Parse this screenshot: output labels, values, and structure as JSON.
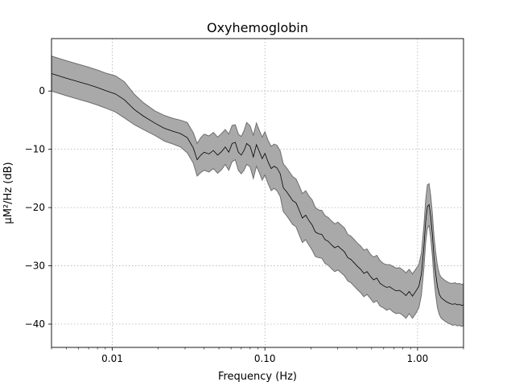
{
  "chart_data": {
    "type": "area",
    "title": "Oxyhemoglobin",
    "xlabel": "Frequency (Hz)",
    "ylabel": "µM²/Hz (dB)",
    "xscale": "log",
    "xlim": [
      0.004,
      2.0
    ],
    "ylim": [
      -44,
      9
    ],
    "grid": true,
    "x_ticks": [
      0.01,
      0.1,
      1.0
    ],
    "x_tick_labels": [
      "0.01",
      "0.10",
      "1.00"
    ],
    "y_ticks": [
      0,
      -10,
      -20,
      -30,
      -40
    ],
    "y_tick_labels": [
      "0",
      "−10",
      "−20",
      "−30",
      "−40"
    ],
    "colors": {
      "mean_line": "#000000",
      "band_fill": "#a9a9a9",
      "band_edge": "#6e6e6e"
    },
    "series": [
      {
        "x": [
          0.004,
          0.005,
          0.006,
          0.007,
          0.008,
          0.009,
          0.0105,
          0.012,
          0.014,
          0.016,
          0.019,
          0.022,
          0.025,
          0.028,
          0.031,
          0.034,
          0.036,
          0.038,
          0.04,
          0.043,
          0.046,
          0.049,
          0.052,
          0.055,
          0.058,
          0.061,
          0.064,
          0.067,
          0.07,
          0.073,
          0.076,
          0.08,
          0.084,
          0.088,
          0.092,
          0.096,
          0.1,
          0.105,
          0.11,
          0.115,
          0.12,
          0.126,
          0.132,
          0.138,
          0.145,
          0.152,
          0.16,
          0.168,
          0.176,
          0.185,
          0.194,
          0.204,
          0.214,
          0.225,
          0.236,
          0.248,
          0.26,
          0.273,
          0.287,
          0.301,
          0.316,
          0.332,
          0.349,
          0.366,
          0.385,
          0.404,
          0.424,
          0.445,
          0.467,
          0.491,
          0.515,
          0.541,
          0.568,
          0.597,
          0.627,
          0.658,
          0.691,
          0.725,
          0.762,
          0.8,
          0.84,
          0.882,
          0.926,
          0.972,
          1.02,
          1.06,
          1.1,
          1.13,
          1.16,
          1.19,
          1.22,
          1.25,
          1.28,
          1.31,
          1.35,
          1.39,
          1.43,
          1.48,
          1.53,
          1.58,
          1.64,
          1.7,
          1.76,
          1.82,
          1.88,
          1.94,
          2.0
        ],
        "mean": [
          3.0,
          2.2,
          1.6,
          1.1,
          0.6,
          0.1,
          -0.5,
          -1.5,
          -3.2,
          -4.3,
          -5.5,
          -6.4,
          -6.9,
          -7.3,
          -8.0,
          -9.8,
          -11.8,
          -11.0,
          -10.5,
          -10.8,
          -10.2,
          -11.0,
          -10.4,
          -9.6,
          -10.5,
          -9.0,
          -8.8,
          -10.5,
          -11.0,
          -10.2,
          -9.0,
          -9.5,
          -11.3,
          -9.2,
          -10.4,
          -11.6,
          -10.7,
          -12.2,
          -13.3,
          -12.9,
          -13.2,
          -14.2,
          -16.6,
          -17.2,
          -18.0,
          -18.8,
          -19.2,
          -20.5,
          -21.8,
          -21.3,
          -22.2,
          -23.0,
          -24.2,
          -24.5,
          -24.6,
          -25.5,
          -25.8,
          -26.4,
          -26.9,
          -26.6,
          -27.1,
          -27.6,
          -28.6,
          -28.9,
          -29.5,
          -30.1,
          -30.6,
          -31.3,
          -31.0,
          -31.8,
          -32.4,
          -32.1,
          -33.0,
          -33.4,
          -33.7,
          -33.6,
          -34.0,
          -34.3,
          -34.2,
          -34.6,
          -35.1,
          -34.4,
          -35.2,
          -34.4,
          -33.5,
          -31.4,
          -26.8,
          -22.4,
          -19.8,
          -19.5,
          -21.6,
          -24.6,
          -28.4,
          -31.0,
          -33.6,
          -34.9,
          -35.5,
          -35.8,
          -36.1,
          -36.3,
          -36.5,
          -36.6,
          -36.5,
          -36.7,
          -36.6,
          -36.8,
          -36.7
        ],
        "lower": [
          0.0,
          -0.8,
          -1.4,
          -1.9,
          -2.4,
          -2.9,
          -3.6,
          -4.6,
          -5.8,
          -6.6,
          -7.6,
          -8.6,
          -9.1,
          -9.6,
          -10.6,
          -12.4,
          -14.6,
          -14.0,
          -13.6,
          -13.9,
          -13.3,
          -14.1,
          -13.5,
          -12.6,
          -13.6,
          -12.1,
          -11.8,
          -13.6,
          -14.2,
          -13.6,
          -12.6,
          -13.0,
          -15.0,
          -12.9,
          -14.0,
          -15.3,
          -14.4,
          -15.9,
          -17.1,
          -16.7,
          -17.1,
          -18.1,
          -20.7,
          -21.3,
          -22.1,
          -22.9,
          -23.3,
          -24.7,
          -26.0,
          -25.5,
          -26.4,
          -27.3,
          -28.4,
          -28.6,
          -28.7,
          -29.6,
          -29.9,
          -30.5,
          -31.0,
          -30.7,
          -31.2,
          -31.7,
          -32.6,
          -32.9,
          -33.5,
          -34.1,
          -34.6,
          -35.3,
          -34.9,
          -35.6,
          -36.3,
          -36.0,
          -36.9,
          -37.2,
          -37.6,
          -37.4,
          -37.9,
          -38.2,
          -38.1,
          -38.5,
          -39.0,
          -38.2,
          -39.0,
          -38.2,
          -37.2,
          -35.0,
          -30.4,
          -26.0,
          -23.5,
          -23.1,
          -25.2,
          -28.2,
          -32.0,
          -34.6,
          -37.2,
          -38.4,
          -39.0,
          -39.3,
          -39.6,
          -39.8,
          -40.0,
          -40.2,
          -40.1,
          -40.3,
          -40.2,
          -40.4,
          -40.3
        ],
        "upper": [
          6.0,
          5.2,
          4.6,
          4.1,
          3.6,
          3.1,
          2.6,
          1.6,
          -0.6,
          -2.0,
          -3.4,
          -4.2,
          -4.7,
          -5.0,
          -5.4,
          -7.2,
          -9.0,
          -8.0,
          -7.4,
          -7.7,
          -7.1,
          -7.9,
          -7.3,
          -6.6,
          -7.4,
          -5.9,
          -5.8,
          -7.4,
          -7.8,
          -6.8,
          -5.4,
          -6.0,
          -7.6,
          -5.5,
          -6.8,
          -7.9,
          -7.0,
          -8.5,
          -9.5,
          -9.1,
          -9.3,
          -10.3,
          -12.5,
          -13.1,
          -13.9,
          -14.7,
          -15.1,
          -16.3,
          -17.6,
          -17.1,
          -18.0,
          -18.7,
          -20.0,
          -20.4,
          -20.5,
          -21.4,
          -21.7,
          -22.3,
          -22.8,
          -22.5,
          -23.0,
          -23.5,
          -24.6,
          -24.9,
          -25.5,
          -26.1,
          -26.6,
          -27.3,
          -27.1,
          -28.0,
          -28.5,
          -28.2,
          -29.1,
          -29.6,
          -29.8,
          -29.8,
          -30.1,
          -30.4,
          -30.3,
          -30.7,
          -31.2,
          -30.6,
          -31.4,
          -30.6,
          -29.8,
          -27.8,
          -23.2,
          -18.8,
          -16.1,
          -15.9,
          -18.0,
          -21.0,
          -24.8,
          -27.4,
          -30.0,
          -31.4,
          -32.0,
          -32.3,
          -32.6,
          -32.8,
          -33.0,
          -33.0,
          -32.9,
          -33.1,
          -33.0,
          -33.2,
          -33.1
        ]
      }
    ]
  }
}
